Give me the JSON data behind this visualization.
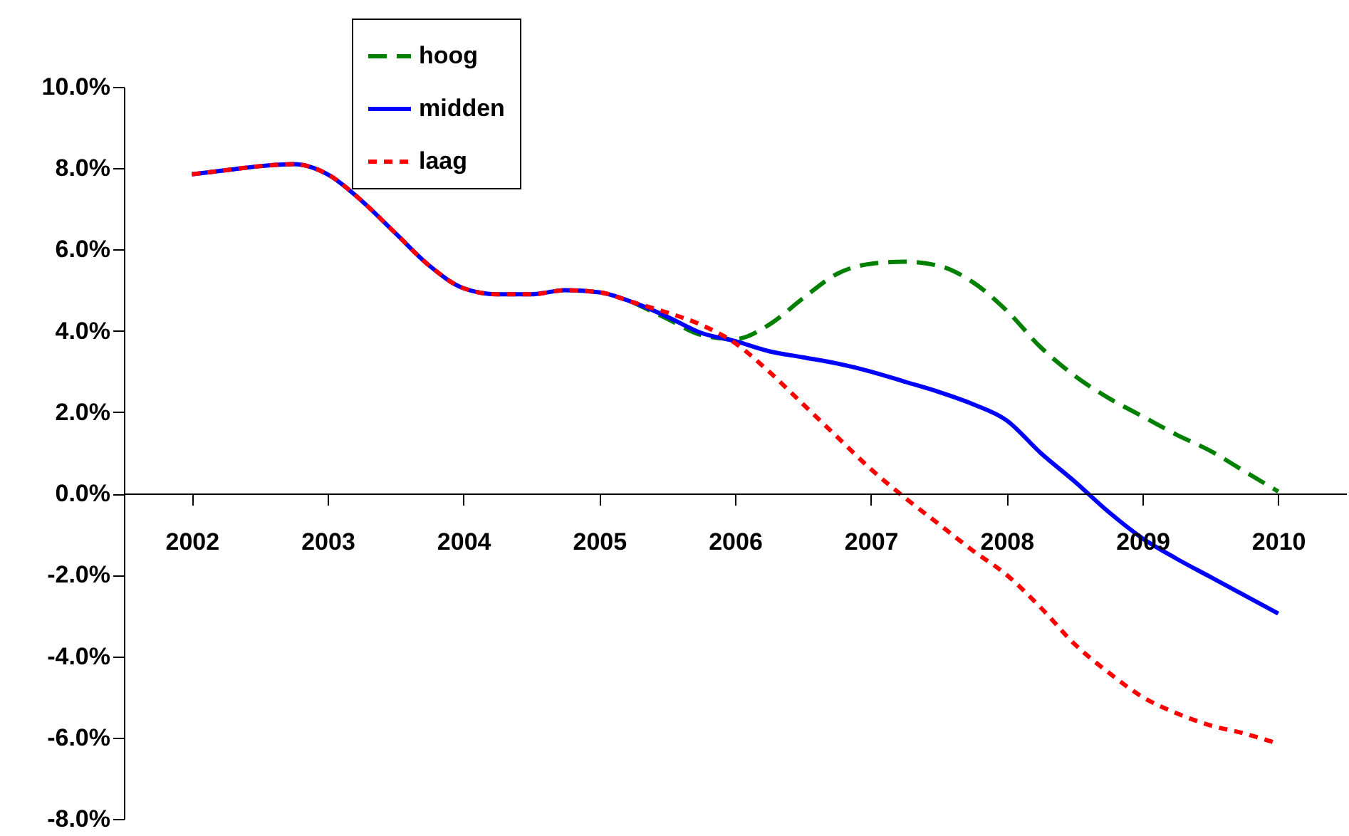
{
  "chart_data": {
    "type": "line",
    "x": [
      2002,
      2002.25,
      2002.5,
      2002.75,
      2003,
      2003.25,
      2003.5,
      2003.75,
      2004,
      2004.25,
      2004.5,
      2004.75,
      2005,
      2005.25,
      2005.5,
      2005.75,
      2006,
      2006.25,
      2006.5,
      2006.75,
      2007,
      2007.25,
      2007.5,
      2007.75,
      2008,
      2008.25,
      2008.5,
      2008.75,
      2009,
      2009.25,
      2009.5,
      2009.75,
      2010
    ],
    "series": [
      {
        "name": "hoog",
        "color": "#008000",
        "line_style": "dashed",
        "values": [
          null,
          null,
          null,
          null,
          null,
          null,
          null,
          null,
          null,
          null,
          null,
          null,
          null,
          4.7,
          4.3,
          3.9,
          3.8,
          4.15,
          4.8,
          5.4,
          5.65,
          5.7,
          5.6,
          5.2,
          4.5,
          3.6,
          2.9,
          2.35,
          1.9,
          1.45,
          1.05,
          0.55,
          0.05
        ]
      },
      {
        "name": "midden",
        "color": "#0000ff",
        "line_style": "solid",
        "values": [
          7.85,
          7.95,
          8.05,
          8.1,
          7.85,
          7.2,
          6.4,
          5.6,
          5.05,
          4.9,
          4.9,
          5.0,
          4.95,
          4.7,
          4.35,
          3.95,
          3.75,
          3.5,
          3.35,
          3.2,
          3.0,
          2.75,
          2.5,
          2.2,
          1.8,
          1.0,
          0.3,
          -0.45,
          -1.1,
          -1.6,
          -2.05,
          -2.5,
          -2.95
        ]
      },
      {
        "name": "laag",
        "color": "#ff0000",
        "line_style": "dotted",
        "values": [
          7.85,
          7.95,
          8.05,
          8.1,
          7.85,
          7.2,
          6.4,
          5.6,
          5.05,
          4.9,
          4.9,
          5.0,
          4.95,
          4.7,
          4.45,
          4.15,
          3.7,
          3.0,
          2.2,
          1.4,
          0.6,
          -0.1,
          -0.75,
          -1.4,
          -2.0,
          -2.8,
          -3.7,
          -4.4,
          -5.0,
          -5.4,
          -5.7,
          -5.9,
          -6.15
        ]
      }
    ],
    "xlim": [
      2001.5,
      2010.5
    ],
    "xticks": [
      2002,
      2003,
      2004,
      2005,
      2006,
      2007,
      2008,
      2009,
      2010
    ],
    "ylim": [
      -8,
      10
    ],
    "yticks": [
      {
        "value": -8,
        "label": "-8.0%"
      },
      {
        "value": -6,
        "label": "-6.0%"
      },
      {
        "value": -4,
        "label": "-4.0%"
      },
      {
        "value": -2,
        "label": "-2.0%"
      },
      {
        "value": 0,
        "label": "0.0%"
      },
      {
        "value": 2,
        "label": "2.0%"
      },
      {
        "value": 4,
        "label": "4.0%"
      },
      {
        "value": 6,
        "label": "6.0%"
      },
      {
        "value": 8,
        "label": "8.0%"
      },
      {
        "value": 10,
        "label": "10.0%"
      }
    ],
    "grid": false,
    "legend": "top left"
  }
}
